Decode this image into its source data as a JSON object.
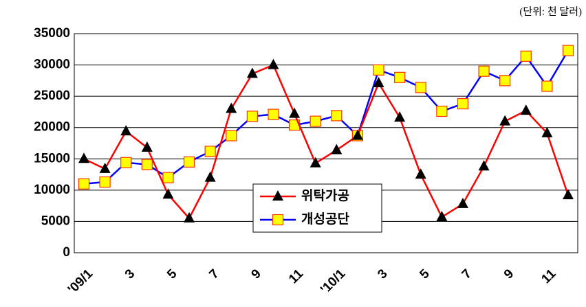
{
  "chart_data": {
    "type": "line",
    "unit_label": "(단위: 천 달러)",
    "categories": [
      "'09/1",
      null,
      "3",
      null,
      "5",
      null,
      "7",
      null,
      "9",
      null,
      "11",
      null,
      "'10/1",
      null,
      "3",
      null,
      "5",
      null,
      "7",
      null,
      "9",
      null,
      "11",
      null
    ],
    "series": [
      {
        "name": "위탁가공",
        "color": "#ff0000",
        "marker": "triangle",
        "marker_color": "#000000",
        "values": [
          15000,
          13400,
          19400,
          16800,
          9300,
          5500,
          12000,
          23000,
          28600,
          30000,
          22200,
          14300,
          16400,
          18700,
          27100,
          21600,
          12500,
          5700,
          7800,
          13800,
          21000,
          22700,
          19100,
          9200
        ]
      },
      {
        "name": "개성공단",
        "color": "#0000ff",
        "marker": "square",
        "marker_color": "#ffff00",
        "values": [
          11000,
          11300,
          14400,
          14100,
          12000,
          14500,
          16200,
          18700,
          21800,
          22100,
          20400,
          21000,
          21900,
          18700,
          29200,
          28000,
          26400,
          22600,
          23800,
          29000,
          27500,
          31400,
          26600,
          32300
        ]
      }
    ],
    "ylim": [
      0,
      35000
    ],
    "yticks": [
      0,
      5000,
      10000,
      15000,
      20000,
      25000,
      30000,
      35000
    ],
    "grid": true,
    "legend": "center"
  }
}
